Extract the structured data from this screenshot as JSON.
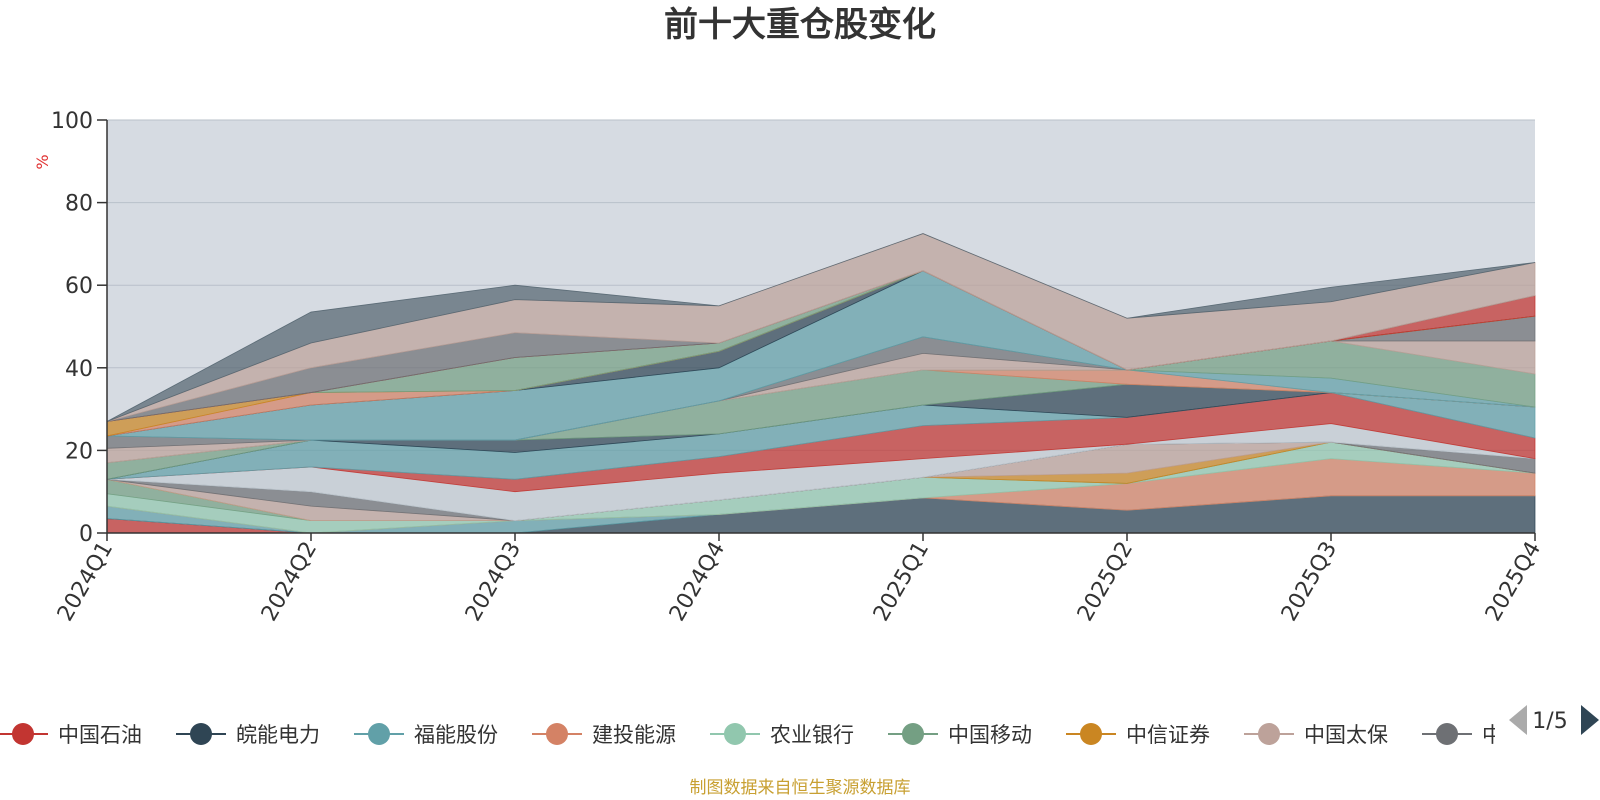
{
  "chart_data": {
    "type": "area",
    "title": "前十大重仓股变化",
    "ylabel": "%",
    "ylim": [
      0,
      100
    ],
    "yticks": [
      0,
      20,
      40,
      60,
      80,
      100
    ],
    "categories": [
      "2024Q1",
      "2024Q2",
      "2024Q3",
      "2024Q4",
      "2025Q1",
      "2025Q2",
      "2025Q3",
      "2025Q4"
    ],
    "grid": true,
    "legend_position": "bottom",
    "legend_page": "1/5",
    "series": [
      {
        "name": "中国石油",
        "color": "#c23531",
        "values": [
          3.5,
          0,
          0,
          0,
          0,
          0,
          0,
          0
        ]
      },
      {
        "name": "皖能电力",
        "color": "#2f4554",
        "values": [
          0,
          0,
          0,
          4.5,
          8.5,
          5.5,
          9.0,
          9.0
        ]
      },
      {
        "name": "福能股份",
        "color": "#61a0a8",
        "values": [
          3.0,
          0,
          3.0,
          0,
          0,
          0,
          0,
          0
        ]
      },
      {
        "name": "建投能源",
        "color": "#d48265",
        "values": [
          0,
          0,
          0,
          0,
          0,
          6.5,
          9.0,
          5.5
        ]
      },
      {
        "name": "农业银行",
        "color": "#91c7ae",
        "values": [
          3.0,
          3.0,
          0,
          3.5,
          5.0,
          0,
          4.0,
          0
        ]
      },
      {
        "name": "中国移动",
        "color": "#749f83",
        "values": [
          3.5,
          0,
          0,
          0,
          0,
          0,
          0,
          0
        ]
      },
      {
        "name": "中信证券",
        "color": "#ca8622",
        "values": [
          0,
          0,
          0,
          0,
          0,
          2.5,
          0,
          0
        ]
      },
      {
        "name": "中国太保",
        "color": "#bda29a",
        "values": [
          0,
          3.5,
          0,
          0,
          0,
          7.0,
          0,
          0
        ]
      },
      {
        "name": "中国神华",
        "color": "#6e7074",
        "values": [
          0,
          3.5,
          0,
          0,
          0,
          0,
          0,
          3.5
        ]
      },
      {
        "name": "",
        "color": "#546570",
        "values": [
          0,
          0,
          0,
          0,
          0,
          0,
          0,
          0
        ]
      },
      {
        "name": "",
        "color": "#c4ccd3",
        "values": [
          0,
          6.0,
          7.0,
          6.5,
          4.5,
          0,
          4.5,
          0
        ]
      },
      {
        "name": "",
        "color": "#c23531",
        "values": [
          0,
          0,
          3.0,
          4.0,
          8.0,
          6.5,
          7.5,
          5.0
        ]
      },
      {
        "name": "",
        "color": "#61a0a8",
        "values": [
          0,
          6.5,
          6.5,
          5.5,
          5.0,
          0,
          0,
          7.5
        ]
      },
      {
        "name": "",
        "color": "#2f4554",
        "values": [
          0,
          0,
          3.0,
          0,
          0,
          8.0,
          0,
          0
        ]
      },
      {
        "name": "",
        "color": "#749f83",
        "values": [
          4.0,
          0,
          0,
          8.0,
          8.5,
          0,
          0,
          0
        ]
      },
      {
        "name": "",
        "color": "#d48265",
        "values": [
          0,
          0,
          0,
          0,
          0,
          3.5,
          0,
          0
        ]
      },
      {
        "name": "",
        "color": "#61a0a8",
        "values": [
          0,
          0,
          0,
          0,
          0,
          0,
          3.5,
          0
        ]
      },
      {
        "name": "",
        "color": "#749f83",
        "values": [
          0,
          0,
          0,
          0,
          0,
          0,
          9.0,
          8.0
        ]
      },
      {
        "name": "",
        "color": "#bda29a",
        "values": [
          3.5,
          0,
          0,
          0,
          4.0,
          0,
          0,
          8.0
        ]
      },
      {
        "name": "",
        "color": "#6e7074",
        "values": [
          3.0,
          0,
          0,
          0,
          4.0,
          0,
          0,
          6.0
        ]
      },
      {
        "name": "",
        "color": "#61a0a8",
        "values": [
          0,
          8.5,
          12.0,
          8.0,
          16.0,
          0,
          0,
          0
        ]
      },
      {
        "name": "",
        "color": "#2f4554",
        "values": [
          0,
          0,
          0,
          4.0,
          0,
          0,
          0,
          0
        ]
      },
      {
        "name": "",
        "color": "#d48265",
        "values": [
          0,
          3.0,
          0,
          0,
          0,
          0,
          0,
          0
        ]
      },
      {
        "name": "",
        "color": "#ca8622",
        "values": [
          3.5,
          0,
          0,
          0,
          0,
          0,
          0,
          0
        ]
      },
      {
        "name": "",
        "color": "#749f83",
        "values": [
          0,
          0,
          8.0,
          2.0,
          0,
          0,
          0,
          0
        ]
      },
      {
        "name": "",
        "color": "#c23531",
        "values": [
          0,
          0,
          0,
          0,
          0,
          0,
          0,
          5.0
        ]
      },
      {
        "name": "",
        "color": "#6e7074",
        "values": [
          0,
          6.0,
          6.0,
          0,
          0,
          0,
          0,
          0
        ]
      },
      {
        "name": "",
        "color": "#bda29a",
        "values": [
          0,
          6.0,
          8.0,
          9.0,
          9.0,
          12.5,
          9.5,
          8.0
        ]
      },
      {
        "name": "",
        "color": "#546570",
        "values": [
          0,
          7.5,
          3.5,
          0,
          0,
          0,
          3.5,
          0
        ]
      }
    ]
  },
  "source_note": "制图数据来自恒生聚源数据库"
}
